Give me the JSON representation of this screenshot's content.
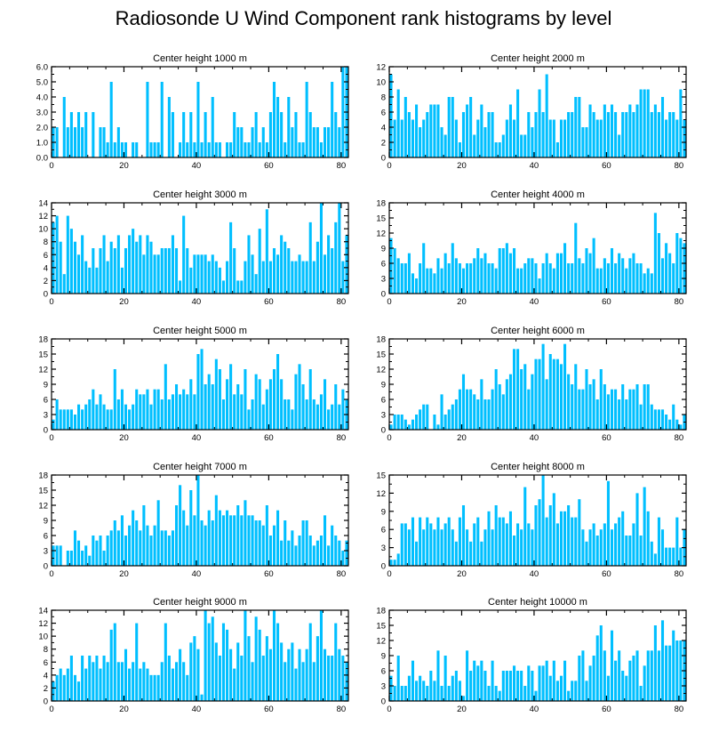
{
  "title": "Radiosonde U Wind Component rank histograms by level",
  "colors": {
    "bar": "#00bfff",
    "axis": "#000000",
    "background": "#ffffff"
  },
  "chart_data": [
    {
      "type": "bar",
      "title": "Center height 1000 m",
      "xlim": [
        0,
        82
      ],
      "ylim": [
        0,
        6
      ],
      "xticks": [
        0,
        20,
        40,
        60,
        80
      ],
      "yticks": [
        0,
        1,
        2,
        3,
        4,
        5,
        6
      ],
      "ytick_labels": [
        "0.0",
        "1.0",
        "2.0",
        "3.0",
        "4.0",
        "5.0",
        "6.0"
      ],
      "values": [
        2,
        2,
        0,
        4,
        2,
        3,
        2,
        3,
        2,
        3,
        0,
        3,
        0,
        2,
        2,
        1,
        5,
        1,
        2,
        1,
        1,
        0,
        1,
        1,
        0,
        0,
        5,
        1,
        1,
        1,
        5,
        0,
        4,
        3,
        0,
        1,
        3,
        1,
        3,
        1,
        5,
        1,
        3,
        1,
        4,
        1,
        1,
        0,
        1,
        1,
        3,
        2,
        2,
        1,
        1,
        2,
        3,
        1,
        2,
        1,
        3,
        5,
        4,
        3,
        1,
        4,
        2,
        3,
        1,
        1,
        5,
        3,
        2,
        2,
        1,
        2,
        2,
        5,
        3,
        2,
        6,
        6
      ]
    },
    {
      "type": "bar",
      "title": "Center height 2000 m",
      "xlim": [
        0,
        82
      ],
      "ylim": [
        0,
        12
      ],
      "xticks": [
        0,
        20,
        40,
        60,
        80
      ],
      "yticks": [
        0,
        2,
        4,
        6,
        8,
        10,
        12
      ],
      "values": [
        11,
        5,
        9,
        5,
        8,
        6,
        5,
        7,
        4,
        5,
        6,
        7,
        7,
        7,
        4,
        3,
        8,
        8,
        5,
        2,
        6,
        7,
        8,
        3,
        5,
        7,
        4,
        6,
        6,
        2,
        2,
        3,
        5,
        7,
        5,
        9,
        3,
        3,
        6,
        4,
        6,
        9,
        6,
        11,
        5,
        5,
        2,
        5,
        5,
        6,
        6,
        8,
        8,
        4,
        4,
        7,
        6,
        5,
        5,
        7,
        6,
        7,
        6,
        3,
        6,
        6,
        7,
        6,
        7,
        9,
        9,
        9,
        6,
        7,
        6,
        8,
        5,
        6,
        6,
        5,
        9,
        5
      ]
    },
    {
      "type": "bar",
      "title": "Center height 3000 m",
      "xlim": [
        0,
        82
      ],
      "ylim": [
        0,
        14
      ],
      "xticks": [
        0,
        20,
        40,
        60,
        80
      ],
      "yticks": [
        0,
        2,
        4,
        6,
        8,
        10,
        12,
        14
      ],
      "values": [
        11,
        12,
        8,
        3,
        12,
        10,
        8,
        6,
        9,
        5,
        4,
        7,
        4,
        7,
        9,
        5,
        8,
        7,
        9,
        4,
        7,
        9,
        10,
        8,
        9,
        6,
        9,
        8,
        6,
        6,
        7,
        7,
        7,
        9,
        7,
        2,
        12,
        7,
        4,
        6,
        6,
        6,
        6,
        5,
        6,
        5,
        4,
        2,
        5,
        11,
        7,
        2,
        2,
        5,
        9,
        6,
        3,
        10,
        5,
        13,
        5,
        7,
        6,
        9,
        8,
        7,
        5,
        5,
        6,
        5,
        5,
        11,
        5,
        8,
        14,
        6,
        9,
        7,
        11,
        14,
        5,
        9
      ]
    },
    {
      "type": "bar",
      "title": "Center height 4000 m",
      "xlim": [
        0,
        82
      ],
      "ylim": [
        0,
        18
      ],
      "xticks": [
        0,
        20,
        40,
        60,
        80
      ],
      "yticks": [
        0,
        3,
        6,
        9,
        12,
        15,
        18
      ],
      "values": [
        11,
        9,
        7,
        6,
        6,
        8,
        4,
        3,
        6,
        10,
        5,
        5,
        4,
        7,
        5,
        8,
        6,
        10,
        7,
        6,
        5,
        6,
        6,
        7,
        9,
        7,
        8,
        6,
        6,
        5,
        9,
        9,
        10,
        8,
        9,
        5,
        5,
        6,
        7,
        7,
        6,
        3,
        6,
        8,
        6,
        5,
        8,
        8,
        10,
        6,
        6,
        14,
        7,
        6,
        9,
        8,
        11,
        5,
        5,
        7,
        6,
        9,
        6,
        8,
        7,
        5,
        7,
        8,
        6,
        6,
        4,
        5,
        4,
        16,
        12,
        7,
        10,
        8,
        6,
        12,
        11,
        10
      ]
    },
    {
      "type": "bar",
      "title": "Center height 5000 m",
      "xlim": [
        0,
        82
      ],
      "ylim": [
        0,
        18
      ],
      "xticks": [
        0,
        20,
        40,
        60,
        80
      ],
      "yticks": [
        0,
        3,
        6,
        9,
        12,
        15,
        18
      ],
      "values": [
        2,
        6,
        4,
        4,
        4,
        4,
        3,
        5,
        4,
        5,
        6,
        8,
        5,
        7,
        5,
        4,
        4,
        12,
        6,
        8,
        5,
        4,
        5,
        8,
        7,
        7,
        8,
        5,
        8,
        8,
        6,
        13,
        6,
        7,
        9,
        7,
        8,
        7,
        10,
        7,
        15,
        16,
        9,
        11,
        9,
        14,
        12,
        6,
        10,
        13,
        7,
        9,
        7,
        12,
        4,
        6,
        11,
        10,
        5,
        8,
        10,
        12,
        15,
        10,
        6,
        6,
        4,
        11,
        13,
        9,
        6,
        12,
        6,
        5,
        7,
        10,
        4,
        5,
        9,
        5,
        8,
        6
      ]
    },
    {
      "type": "bar",
      "title": "Center height 6000 m",
      "xlim": [
        0,
        82
      ],
      "ylim": [
        0,
        18
      ],
      "xticks": [
        0,
        20,
        40,
        60,
        80
      ],
      "yticks": [
        0,
        3,
        6,
        9,
        12,
        15,
        18
      ],
      "values": [
        1,
        3,
        3,
        3,
        2,
        1,
        2,
        3,
        4,
        5,
        5,
        0,
        3,
        1,
        7,
        3,
        4,
        5,
        6,
        8,
        11,
        8,
        8,
        7,
        6,
        10,
        6,
        6,
        8,
        12,
        9,
        7,
        10,
        11,
        16,
        16,
        12,
        13,
        8,
        11,
        14,
        14,
        17,
        10,
        15,
        14,
        14,
        13,
        17,
        11,
        9,
        13,
        8,
        8,
        12,
        9,
        10,
        6,
        12,
        9,
        7,
        8,
        8,
        6,
        9,
        6,
        8,
        8,
        9,
        5,
        9,
        9,
        5,
        4,
        4,
        4,
        3,
        2,
        5,
        2,
        1,
        3
      ]
    },
    {
      "type": "bar",
      "title": "Center height 7000 m",
      "xlim": [
        0,
        82
      ],
      "ylim": [
        0,
        18
      ],
      "xticks": [
        0,
        20,
        40,
        60,
        80
      ],
      "yticks": [
        0,
        3,
        6,
        9,
        12,
        15,
        18
      ],
      "values": [
        4,
        4,
        4,
        0,
        3,
        3,
        7,
        5,
        3,
        4,
        2,
        6,
        5,
        6,
        3,
        6,
        7,
        9,
        7,
        10,
        6,
        8,
        11,
        9,
        7,
        12,
        8,
        6,
        8,
        13,
        7,
        7,
        6,
        7,
        12,
        16,
        11,
        8,
        15,
        10,
        18,
        9,
        8,
        11,
        9,
        14,
        11,
        10,
        11,
        10,
        10,
        12,
        10,
        13,
        10,
        10,
        9,
        9,
        8,
        12,
        6,
        8,
        11,
        5,
        9,
        5,
        7,
        4,
        6,
        9,
        9,
        6,
        4,
        5,
        6,
        10,
        4,
        8,
        6,
        5,
        3,
        5
      ]
    },
    {
      "type": "bar",
      "title": "Center height 8000 m",
      "xlim": [
        0,
        82
      ],
      "ylim": [
        0,
        15
      ],
      "xticks": [
        0,
        20,
        40,
        60,
        80
      ],
      "yticks": [
        0,
        3,
        6,
        9,
        12,
        15
      ],
      "values": [
        1,
        1,
        2,
        7,
        7,
        6,
        8,
        4,
        8,
        6,
        8,
        7,
        6,
        8,
        6,
        7,
        8,
        6,
        4,
        8,
        10,
        6,
        4,
        7,
        8,
        4,
        6,
        9,
        6,
        10,
        8,
        8,
        7,
        9,
        5,
        7,
        6,
        13,
        7,
        6,
        10,
        11,
        15,
        8,
        10,
        12,
        7,
        9,
        9,
        10,
        8,
        8,
        11,
        6,
        4,
        6,
        7,
        5,
        6,
        7,
        14,
        6,
        7,
        8,
        9,
        5,
        5,
        7,
        12,
        5,
        13,
        9,
        4,
        2,
        8,
        6,
        3,
        3,
        3,
        8,
        3,
        6
      ]
    },
    {
      "type": "bar",
      "title": "Center height 9000 m",
      "xlim": [
        0,
        82
      ],
      "ylim": [
        0,
        14
      ],
      "xticks": [
        0,
        20,
        40,
        60,
        80
      ],
      "yticks": [
        0,
        2,
        4,
        6,
        8,
        10,
        12,
        14
      ],
      "values": [
        3,
        4,
        5,
        4,
        5,
        7,
        4,
        3,
        7,
        5,
        7,
        6,
        7,
        5,
        7,
        6,
        11,
        12,
        6,
        6,
        8,
        5,
        6,
        12,
        5,
        6,
        5,
        4,
        4,
        4,
        6,
        12,
        7,
        5,
        6,
        8,
        6,
        4,
        9,
        10,
        8,
        1,
        14,
        12,
        13,
        9,
        7,
        12,
        11,
        8,
        5,
        9,
        7,
        14,
        10,
        6,
        13,
        11,
        7,
        10,
        8,
        14,
        12,
        9,
        6,
        8,
        9,
        5,
        8,
        6,
        8,
        12,
        6,
        10,
        14,
        8,
        7,
        7,
        12,
        8,
        7,
        6
      ]
    },
    {
      "type": "bar",
      "title": "Center height 10000 m",
      "xlim": [
        0,
        82
      ],
      "ylim": [
        0,
        18
      ],
      "xticks": [
        0,
        20,
        40,
        60,
        80
      ],
      "yticks": [
        0,
        3,
        6,
        9,
        12,
        15,
        18
      ],
      "values": [
        5,
        3,
        9,
        3,
        3,
        5,
        8,
        4,
        5,
        4,
        3,
        6,
        4,
        10,
        3,
        9,
        3,
        5,
        6,
        4,
        1,
        10,
        6,
        8,
        7,
        8,
        6,
        3,
        8,
        3,
        2,
        6,
        6,
        6,
        7,
        6,
        6,
        3,
        7,
        6,
        2,
        7,
        7,
        8,
        5,
        8,
        4,
        5,
        8,
        2,
        4,
        4,
        9,
        10,
        4,
        7,
        9,
        13,
        15,
        10,
        5,
        14,
        8,
        10,
        6,
        5,
        8,
        9,
        10,
        3,
        7,
        10,
        10,
        15,
        10,
        16,
        11,
        11,
        14,
        12,
        12,
        12
      ]
    }
  ]
}
